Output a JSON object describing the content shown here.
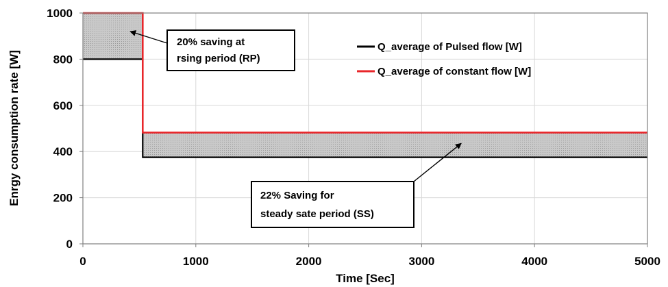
{
  "chart_data": {
    "type": "line",
    "title": "",
    "xlabel": "Time [Sec]",
    "ylabel": "Enrgy consumption rate [W]",
    "xlim": [
      0,
      5000
    ],
    "ylim": [
      0,
      1000
    ],
    "xticks": [
      0,
      1000,
      2000,
      3000,
      4000,
      5000
    ],
    "yticks": [
      0,
      200,
      400,
      600,
      800,
      1000
    ],
    "grid": true,
    "legend_position": "top-right",
    "series": [
      {
        "name": "Q_average of Pulsed flow [W]",
        "color": "#000000",
        "x": [
          0,
          530,
          530,
          5000
        ],
        "y": [
          800,
          800,
          375,
          375
        ]
      },
      {
        "name": "Q_average of constant flow  [W]",
        "color": "#e8262a",
        "x": [
          0,
          530,
          530,
          5000
        ],
        "y": [
          1000,
          1000,
          482,
          482
        ]
      }
    ],
    "shaded_regions": [
      {
        "x": [
          0,
          530
        ],
        "y_low": 800,
        "y_high": 1000,
        "fill": "#c8c8c8"
      },
      {
        "x": [
          530,
          5000
        ],
        "y_low": 375,
        "y_high": 482,
        "fill": "#c8c8c8"
      }
    ],
    "annotations": [
      {
        "lines": [
          "20% saving at",
          "rsing period  (RP)"
        ],
        "arrow_target": {
          "x": 420,
          "y": 920
        }
      },
      {
        "lines": [
          "22% Saving  for",
          "steady sate period (SS)"
        ],
        "arrow_target": {
          "x": 3350,
          "y": 435
        }
      }
    ]
  }
}
